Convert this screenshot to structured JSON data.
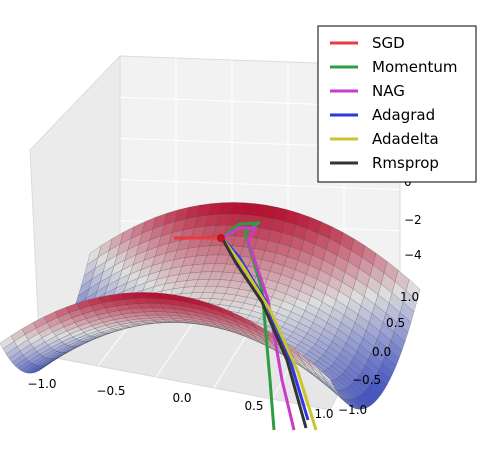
{
  "chart_data": {
    "type": "surface3d",
    "surface": "saddle",
    "colormap": [
      "#3b4cc0",
      "#dddddd",
      "#b40426"
    ],
    "x_ticks": [
      "−1.0",
      "−0.5",
      "0.0",
      "0.5",
      "1.0"
    ],
    "y_ticks": [
      "1.0",
      "0.5",
      "0.0",
      "−0.5",
      "−1.0"
    ],
    "z_ticks": [
      "0",
      "−2",
      "−4"
    ],
    "legend_position": "top-right",
    "grid": true,
    "series": [
      {
        "name": "SGD",
        "color": "#e8393f"
      },
      {
        "name": "Momentum",
        "color": "#2e9d41"
      },
      {
        "name": "NAG",
        "color": "#c93cc8"
      },
      {
        "name": "Adagrad",
        "color": "#2f37e0"
      },
      {
        "name": "Adadelta",
        "color": "#c9c52c"
      },
      {
        "name": "Rmsprop",
        "color": "#333333"
      }
    ]
  }
}
